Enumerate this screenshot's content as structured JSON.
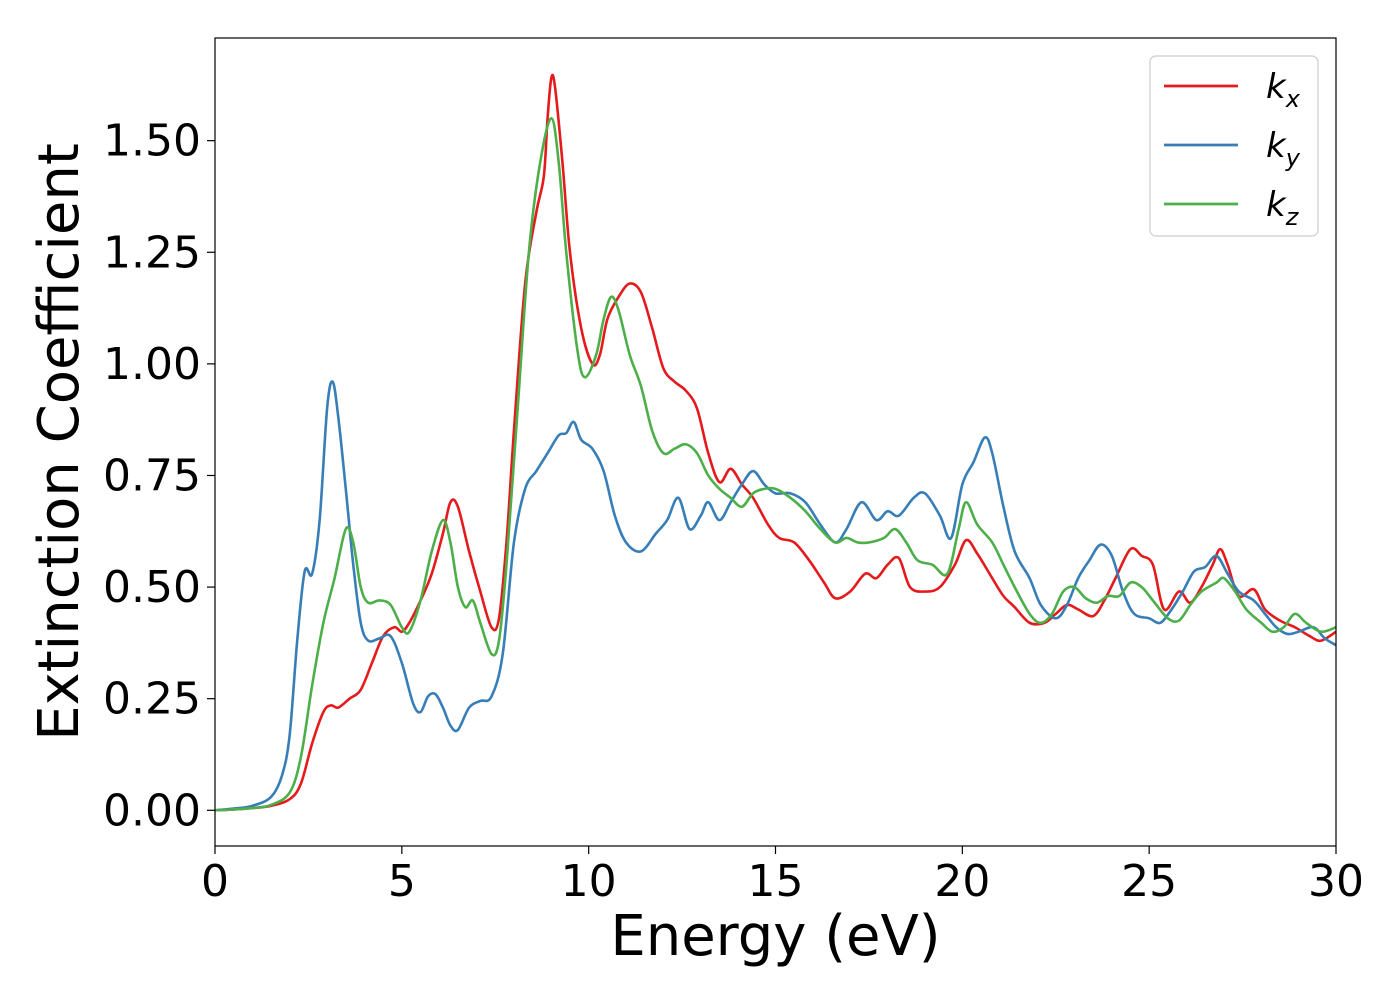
{
  "chart_data": {
    "type": "line",
    "xlabel": "Energy (eV)",
    "ylabel": "Extinction Coefficient",
    "xlim": [
      0,
      30
    ],
    "ylim": [
      -0.08,
      1.73
    ],
    "xticks": [
      0,
      5,
      10,
      15,
      20,
      25,
      30
    ],
    "xtick_labels": [
      "0",
      "5",
      "10",
      "15",
      "20",
      "25",
      "30"
    ],
    "yticks": [
      0.0,
      0.25,
      0.5,
      0.75,
      1.0,
      1.25,
      1.5
    ],
    "ytick_labels": [
      "0.00",
      "0.25",
      "0.50",
      "0.75",
      "1.00",
      "1.25",
      "1.50"
    ],
    "grid": false,
    "legend_position": "top-right",
    "series": [
      {
        "name": "k_x",
        "label_base": "k",
        "label_sub": "x",
        "color": "#e41a1c",
        "points": [
          [
            0,
            0
          ],
          [
            0.5,
            0.002
          ],
          [
            1,
            0.005
          ],
          [
            1.5,
            0.01
          ],
          [
            2,
            0.025
          ],
          [
            2.3,
            0.06
          ],
          [
            2.6,
            0.15
          ],
          [
            2.9,
            0.22
          ],
          [
            3.1,
            0.235
          ],
          [
            3.3,
            0.23
          ],
          [
            3.6,
            0.25
          ],
          [
            3.9,
            0.27
          ],
          [
            4.2,
            0.33
          ],
          [
            4.5,
            0.39
          ],
          [
            4.8,
            0.41
          ],
          [
            5.0,
            0.4
          ],
          [
            5.2,
            0.42
          ],
          [
            5.5,
            0.47
          ],
          [
            5.8,
            0.53
          ],
          [
            6.1,
            0.62
          ],
          [
            6.3,
            0.69
          ],
          [
            6.5,
            0.68
          ],
          [
            6.8,
            0.58
          ],
          [
            7.1,
            0.49
          ],
          [
            7.4,
            0.41
          ],
          [
            7.6,
            0.43
          ],
          [
            7.8,
            0.6
          ],
          [
            8.0,
            0.85
          ],
          [
            8.3,
            1.18
          ],
          [
            8.6,
            1.34
          ],
          [
            8.8,
            1.42
          ],
          [
            8.9,
            1.55
          ],
          [
            9.0,
            1.64
          ],
          [
            9.1,
            1.62
          ],
          [
            9.3,
            1.45
          ],
          [
            9.5,
            1.25
          ],
          [
            9.8,
            1.08
          ],
          [
            10.1,
            1.0
          ],
          [
            10.3,
            1.02
          ],
          [
            10.5,
            1.1
          ],
          [
            10.8,
            1.15
          ],
          [
            11.1,
            1.18
          ],
          [
            11.4,
            1.16
          ],
          [
            11.7,
            1.08
          ],
          [
            12.0,
            0.99
          ],
          [
            12.3,
            0.96
          ],
          [
            12.6,
            0.94
          ],
          [
            12.9,
            0.9
          ],
          [
            13.2,
            0.8
          ],
          [
            13.5,
            0.735
          ],
          [
            13.8,
            0.765
          ],
          [
            14.1,
            0.73
          ],
          [
            14.4,
            0.7
          ],
          [
            14.8,
            0.64
          ],
          [
            15.1,
            0.61
          ],
          [
            15.5,
            0.6
          ],
          [
            15.9,
            0.56
          ],
          [
            16.3,
            0.51
          ],
          [
            16.6,
            0.475
          ],
          [
            17.0,
            0.49
          ],
          [
            17.4,
            0.53
          ],
          [
            17.7,
            0.52
          ],
          [
            18.0,
            0.55
          ],
          [
            18.3,
            0.565
          ],
          [
            18.6,
            0.5
          ],
          [
            19.0,
            0.49
          ],
          [
            19.4,
            0.5
          ],
          [
            19.8,
            0.55
          ],
          [
            20.1,
            0.605
          ],
          [
            20.4,
            0.575
          ],
          [
            20.8,
            0.52
          ],
          [
            21.1,
            0.48
          ],
          [
            21.4,
            0.455
          ],
          [
            21.8,
            0.42
          ],
          [
            22.2,
            0.42
          ],
          [
            22.5,
            0.44
          ],
          [
            22.8,
            0.46
          ],
          [
            23.1,
            0.45
          ],
          [
            23.5,
            0.435
          ],
          [
            23.8,
            0.47
          ],
          [
            24.1,
            0.52
          ],
          [
            24.5,
            0.585
          ],
          [
            24.8,
            0.57
          ],
          [
            25.1,
            0.55
          ],
          [
            25.4,
            0.45
          ],
          [
            25.8,
            0.49
          ],
          [
            26.1,
            0.465
          ],
          [
            26.4,
            0.5
          ],
          [
            26.7,
            0.55
          ],
          [
            26.9,
            0.585
          ],
          [
            27.1,
            0.55
          ],
          [
            27.4,
            0.48
          ],
          [
            27.8,
            0.495
          ],
          [
            28.1,
            0.45
          ],
          [
            28.5,
            0.425
          ],
          [
            28.9,
            0.41
          ],
          [
            29.3,
            0.39
          ],
          [
            29.6,
            0.38
          ],
          [
            30.0,
            0.4
          ]
        ]
      },
      {
        "name": "k_y",
        "label_base": "k",
        "label_sub": "y",
        "color": "#377eb8",
        "points": [
          [
            0,
            0
          ],
          [
            0.5,
            0.004
          ],
          [
            1,
            0.01
          ],
          [
            1.5,
            0.03
          ],
          [
            1.8,
            0.08
          ],
          [
            2.0,
            0.17
          ],
          [
            2.2,
            0.38
          ],
          [
            2.4,
            0.535
          ],
          [
            2.6,
            0.53
          ],
          [
            2.8,
            0.65
          ],
          [
            3.0,
            0.9
          ],
          [
            3.15,
            0.96
          ],
          [
            3.3,
            0.88
          ],
          [
            3.5,
            0.72
          ],
          [
            3.7,
            0.55
          ],
          [
            3.9,
            0.42
          ],
          [
            4.1,
            0.38
          ],
          [
            4.4,
            0.385
          ],
          [
            4.7,
            0.39
          ],
          [
            5.0,
            0.33
          ],
          [
            5.3,
            0.24
          ],
          [
            5.5,
            0.22
          ],
          [
            5.7,
            0.255
          ],
          [
            5.9,
            0.26
          ],
          [
            6.1,
            0.23
          ],
          [
            6.3,
            0.19
          ],
          [
            6.5,
            0.18
          ],
          [
            6.8,
            0.23
          ],
          [
            7.1,
            0.245
          ],
          [
            7.4,
            0.255
          ],
          [
            7.7,
            0.35
          ],
          [
            8.0,
            0.6
          ],
          [
            8.3,
            0.72
          ],
          [
            8.6,
            0.76
          ],
          [
            8.9,
            0.8
          ],
          [
            9.2,
            0.84
          ],
          [
            9.4,
            0.845
          ],
          [
            9.6,
            0.87
          ],
          [
            9.8,
            0.83
          ],
          [
            10.1,
            0.81
          ],
          [
            10.4,
            0.76
          ],
          [
            10.7,
            0.66
          ],
          [
            11.0,
            0.6
          ],
          [
            11.4,
            0.58
          ],
          [
            11.8,
            0.62
          ],
          [
            12.1,
            0.65
          ],
          [
            12.4,
            0.7
          ],
          [
            12.7,
            0.63
          ],
          [
            13.0,
            0.66
          ],
          [
            13.2,
            0.69
          ],
          [
            13.5,
            0.65
          ],
          [
            13.8,
            0.69
          ],
          [
            14.1,
            0.73
          ],
          [
            14.4,
            0.76
          ],
          [
            14.7,
            0.73
          ],
          [
            15.0,
            0.71
          ],
          [
            15.4,
            0.71
          ],
          [
            15.8,
            0.69
          ],
          [
            16.2,
            0.64
          ],
          [
            16.6,
            0.6
          ],
          [
            16.9,
            0.63
          ],
          [
            17.3,
            0.69
          ],
          [
            17.7,
            0.65
          ],
          [
            18.0,
            0.67
          ],
          [
            18.3,
            0.66
          ],
          [
            18.7,
            0.7
          ],
          [
            19.0,
            0.71
          ],
          [
            19.4,
            0.66
          ],
          [
            19.7,
            0.61
          ],
          [
            20.0,
            0.73
          ],
          [
            20.3,
            0.78
          ],
          [
            20.6,
            0.835
          ],
          [
            20.8,
            0.8
          ],
          [
            21.1,
            0.68
          ],
          [
            21.4,
            0.58
          ],
          [
            21.8,
            0.52
          ],
          [
            22.1,
            0.46
          ],
          [
            22.5,
            0.43
          ],
          [
            22.8,
            0.46
          ],
          [
            23.1,
            0.52
          ],
          [
            23.4,
            0.56
          ],
          [
            23.7,
            0.595
          ],
          [
            24.0,
            0.57
          ],
          [
            24.3,
            0.49
          ],
          [
            24.6,
            0.44
          ],
          [
            25.0,
            0.43
          ],
          [
            25.3,
            0.42
          ],
          [
            25.6,
            0.45
          ],
          [
            25.9,
            0.49
          ],
          [
            26.2,
            0.535
          ],
          [
            26.5,
            0.545
          ],
          [
            26.8,
            0.57
          ],
          [
            27.1,
            0.53
          ],
          [
            27.4,
            0.49
          ],
          [
            27.8,
            0.47
          ],
          [
            28.1,
            0.44
          ],
          [
            28.4,
            0.41
          ],
          [
            28.7,
            0.395
          ],
          [
            29.0,
            0.4
          ],
          [
            29.4,
            0.41
          ],
          [
            29.7,
            0.385
          ],
          [
            30.0,
            0.37
          ]
        ]
      },
      {
        "name": "k_z",
        "label_base": "k",
        "label_sub": "z",
        "color": "#4daf4a",
        "points": [
          [
            0,
            0
          ],
          [
            0.5,
            0.002
          ],
          [
            1,
            0.005
          ],
          [
            1.5,
            0.012
          ],
          [
            2.0,
            0.04
          ],
          [
            2.3,
            0.12
          ],
          [
            2.6,
            0.28
          ],
          [
            2.9,
            0.42
          ],
          [
            3.2,
            0.52
          ],
          [
            3.5,
            0.63
          ],
          [
            3.7,
            0.6
          ],
          [
            3.9,
            0.5
          ],
          [
            4.1,
            0.465
          ],
          [
            4.4,
            0.47
          ],
          [
            4.7,
            0.46
          ],
          [
            5.0,
            0.41
          ],
          [
            5.2,
            0.4
          ],
          [
            5.5,
            0.47
          ],
          [
            5.8,
            0.58
          ],
          [
            6.1,
            0.65
          ],
          [
            6.3,
            0.6
          ],
          [
            6.5,
            0.5
          ],
          [
            6.7,
            0.455
          ],
          [
            6.9,
            0.47
          ],
          [
            7.1,
            0.42
          ],
          [
            7.4,
            0.35
          ],
          [
            7.6,
            0.38
          ],
          [
            7.8,
            0.55
          ],
          [
            8.1,
            0.9
          ],
          [
            8.4,
            1.25
          ],
          [
            8.7,
            1.45
          ],
          [
            9.0,
            1.55
          ],
          [
            9.2,
            1.45
          ],
          [
            9.4,
            1.25
          ],
          [
            9.7,
            1.03
          ],
          [
            9.9,
            0.97
          ],
          [
            10.2,
            1.02
          ],
          [
            10.4,
            1.1
          ],
          [
            10.6,
            1.15
          ],
          [
            10.8,
            1.12
          ],
          [
            11.1,
            1.02
          ],
          [
            11.4,
            0.95
          ],
          [
            11.7,
            0.85
          ],
          [
            12.0,
            0.8
          ],
          [
            12.3,
            0.81
          ],
          [
            12.6,
            0.82
          ],
          [
            12.9,
            0.8
          ],
          [
            13.2,
            0.75
          ],
          [
            13.5,
            0.72
          ],
          [
            13.8,
            0.7
          ],
          [
            14.1,
            0.68
          ],
          [
            14.4,
            0.71
          ],
          [
            14.7,
            0.72
          ],
          [
            15.0,
            0.72
          ],
          [
            15.4,
            0.7
          ],
          [
            15.8,
            0.67
          ],
          [
            16.2,
            0.63
          ],
          [
            16.6,
            0.6
          ],
          [
            16.9,
            0.61
          ],
          [
            17.2,
            0.6
          ],
          [
            17.5,
            0.6
          ],
          [
            17.9,
            0.61
          ],
          [
            18.2,
            0.63
          ],
          [
            18.5,
            0.6
          ],
          [
            18.8,
            0.56
          ],
          [
            19.2,
            0.55
          ],
          [
            19.6,
            0.53
          ],
          [
            19.9,
            0.63
          ],
          [
            20.1,
            0.69
          ],
          [
            20.4,
            0.64
          ],
          [
            20.8,
            0.6
          ],
          [
            21.1,
            0.55
          ],
          [
            21.4,
            0.5
          ],
          [
            21.8,
            0.44
          ],
          [
            22.1,
            0.42
          ],
          [
            22.4,
            0.44
          ],
          [
            22.7,
            0.49
          ],
          [
            23.0,
            0.5
          ],
          [
            23.3,
            0.475
          ],
          [
            23.6,
            0.465
          ],
          [
            23.9,
            0.48
          ],
          [
            24.2,
            0.48
          ],
          [
            24.5,
            0.51
          ],
          [
            24.8,
            0.5
          ],
          [
            25.1,
            0.47
          ],
          [
            25.5,
            0.43
          ],
          [
            25.8,
            0.425
          ],
          [
            26.1,
            0.46
          ],
          [
            26.4,
            0.49
          ],
          [
            26.8,
            0.51
          ],
          [
            27.0,
            0.52
          ],
          [
            27.3,
            0.49
          ],
          [
            27.6,
            0.45
          ],
          [
            28.0,
            0.42
          ],
          [
            28.3,
            0.4
          ],
          [
            28.6,
            0.41
          ],
          [
            28.9,
            0.44
          ],
          [
            29.2,
            0.42
          ],
          [
            29.6,
            0.4
          ],
          [
            30.0,
            0.41
          ]
        ]
      }
    ]
  }
}
